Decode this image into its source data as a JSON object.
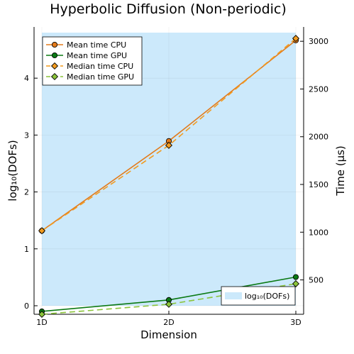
{
  "chart_data": {
    "type": "line",
    "title": "Hyperbolic Diffusion (Non-periodic)",
    "xlabel": "Dimension",
    "ylabel_left": "log₁₀(DOFs)",
    "ylabel_right": "Time (μs)",
    "categories": [
      "1D",
      "2D",
      "3D"
    ],
    "left_axis": {
      "ylim": [
        -0.15,
        4.9
      ],
      "ticks": [
        "0",
        "1",
        "2",
        "3",
        "4"
      ]
    },
    "right_axis": {
      "ylim": [
        140,
        3150
      ],
      "ticks": [
        "500",
        "1000",
        "1500",
        "2000",
        "2500",
        "3000"
      ]
    },
    "area_series": {
      "name": "log₁₀(DOFs)",
      "axis": "left",
      "values": [
        4.8,
        4.8,
        4.8
      ],
      "color": "#cce9fb"
    },
    "series": [
      {
        "name": "Mean time CPU",
        "axis": "right",
        "values": [
          1015,
          1955,
          3010
        ],
        "color": "#e37b1c",
        "style": "solid",
        "marker": "circle"
      },
      {
        "name": "Mean time GPU",
        "axis": "right",
        "values": [
          170,
          290,
          530
        ],
        "color": "#0b7a14",
        "style": "solid",
        "marker": "circle"
      },
      {
        "name": "Median time CPU",
        "axis": "right",
        "values": [
          1015,
          1910,
          3030
        ],
        "color": "#f29b1f",
        "style": "dashed",
        "marker": "diamond"
      },
      {
        "name": "Median time GPU",
        "axis": "right",
        "values": [
          140,
          245,
          460
        ],
        "color": "#8bc43a",
        "style": "dashed",
        "marker": "diamond"
      }
    ],
    "legend": {
      "position": "top-left"
    },
    "area_legend": {
      "position": "bottom-right"
    },
    "grid": true
  }
}
